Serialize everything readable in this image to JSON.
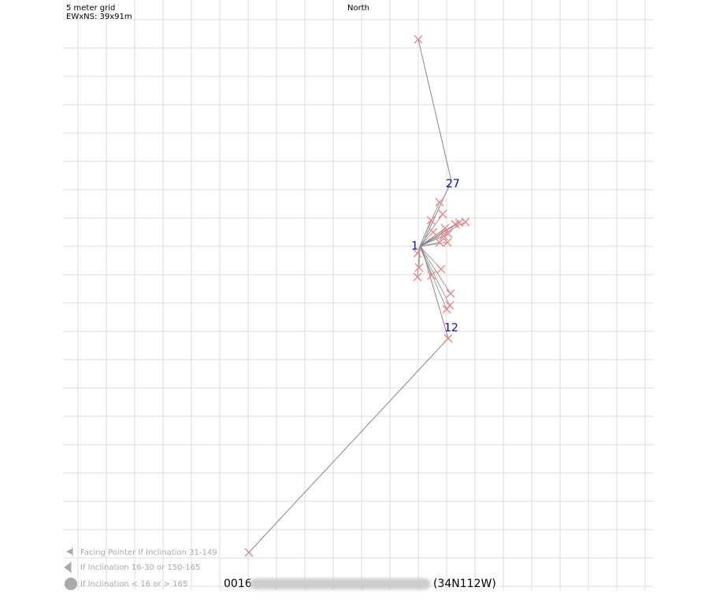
{
  "header": {
    "grid_label": "5 meter grid",
    "extent": "EWxNS: 39x91m",
    "north": "North"
  },
  "stations": [
    "1",
    "27",
    "12"
  ],
  "legend": [
    "Facing Pointer If Inclination 31-149",
    "If Inclination 16-30 or 150-165",
    "If Inclination < 16 or > 165"
  ],
  "footer": {
    "id": "0016",
    "zone": "(34N112W)"
  }
}
